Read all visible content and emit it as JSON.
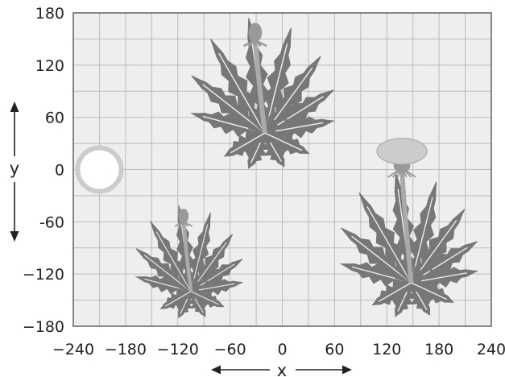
{
  "chart_data": {
    "type": "coordinate-grid",
    "xlabel": "x",
    "ylabel": "y",
    "xlim": [
      -240,
      240
    ],
    "ylim": [
      -180,
      180
    ],
    "grid": true,
    "x_ticks": [
      "−240",
      "−180",
      "−120",
      "−60",
      "0",
      "60",
      "120",
      "180",
      "240"
    ],
    "y_ticks": [
      "180",
      "120",
      "60",
      "0",
      "-60",
      "−120",
      "−180"
    ],
    "x_tick_values": [
      -240,
      -180,
      -120,
      -60,
      0,
      60,
      120,
      180,
      240
    ],
    "y_tick_values": [
      180,
      120,
      60,
      0,
      -60,
      -120,
      -180
    ],
    "objects": [
      {
        "kind": "circle",
        "name": "ring",
        "center": [
          -210,
          0
        ],
        "radius": 25
      },
      {
        "kind": "dandelion",
        "name": "plant-top",
        "flower": "bud",
        "base": [
          -20,
          42
        ],
        "scale": 1.2
      },
      {
        "kind": "dandelion",
        "name": "plant-bottom-left",
        "flower": "bud",
        "base": [
          -105,
          -140
        ],
        "scale": 0.9
      },
      {
        "kind": "dandelion",
        "name": "plant-bottom-right",
        "flower": "bloom",
        "base": [
          148,
          -130
        ],
        "scale": 1.15
      }
    ]
  },
  "colors": {
    "grid_background": "#eeeeee",
    "grid_line": "#bbbbbb",
    "frame": "#555555",
    "leaf": "#777777",
    "leaf_vein": "#eeeeee",
    "stem": "#aaaaaa",
    "bud": "#999999",
    "bloom": "#cccccc",
    "ring": "#cccccc",
    "axis_text": "#222222"
  }
}
